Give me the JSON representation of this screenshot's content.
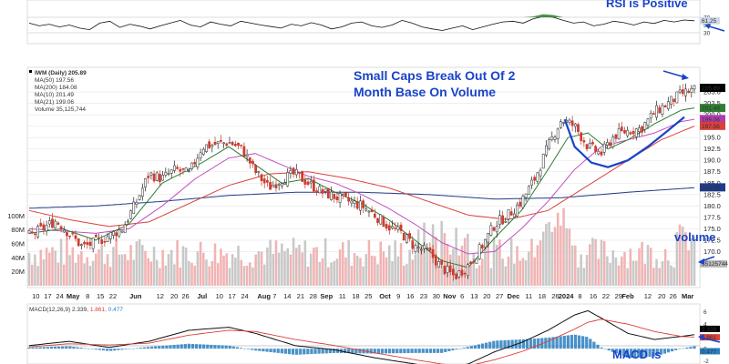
{
  "annotations": {
    "rsi": "RSI is Positive",
    "headline_line1": "Small Caps Break Out Of 2",
    "headline_line2": "Month Base On Volume",
    "volume": "volume",
    "macd": "MACD is"
  },
  "chart_data": {
    "type": "candlestick",
    "symbol": "IWM",
    "legend": {
      "title": "IWM (Daily) 205.89",
      "ma50": "MA(50) 197.56",
      "ma200": "MA(200) 184.08",
      "ma10": "MA(10) 201.49",
      "ma21": "MA(21) 199.06",
      "volume": "Volume 35,125,744"
    },
    "price_axis": {
      "min": 162.5,
      "max": 210,
      "ticks": [
        "167.5",
        "170.0",
        "172.5",
        "175.0",
        "177.5",
        "180.0",
        "182.5",
        "185.0",
        "187.5",
        "190.0",
        "192.5",
        "195.0",
        "197.5",
        "200.0",
        "202.5",
        "205.0"
      ]
    },
    "price_badges": [
      {
        "label": "205.89",
        "value": 205.89,
        "color": "#000000",
        "text_color": "#ffffff"
      },
      {
        "label": "201.49",
        "value": 201.49,
        "color": "#2e7d32",
        "text_color": "#ffffff"
      },
      {
        "label": "199.06",
        "value": 199.06,
        "color": "#b03cb0",
        "text_color": "#ffffff"
      },
      {
        "label": "197.56",
        "value": 197.56,
        "color": "#d9413b",
        "text_color": "#ffffff"
      },
      {
        "label": "184.08",
        "value": 184.08,
        "color": "#1f3a8a",
        "text_color": "#ffffff"
      }
    ],
    "volume_axis": {
      "ticks": [
        "20M",
        "40M",
        "60M",
        "80M",
        "100M"
      ],
      "max_m": 120,
      "last_label": "35125744"
    },
    "x_axis_labels": [
      {
        "label": "10",
        "pos": 0.01
      },
      {
        "label": "17",
        "pos": 0.028
      },
      {
        "label": "24",
        "pos": 0.046
      },
      {
        "label": "May",
        "pos": 0.066,
        "bold": true
      },
      {
        "label": "8",
        "pos": 0.088
      },
      {
        "label": "15",
        "pos": 0.107
      },
      {
        "label": "22",
        "pos": 0.126
      },
      {
        "label": "Jun",
        "pos": 0.16,
        "bold": true
      },
      {
        "label": "12",
        "pos": 0.197
      },
      {
        "label": "20",
        "pos": 0.218
      },
      {
        "label": "26",
        "pos": 0.235
      },
      {
        "label": "Jul",
        "pos": 0.26,
        "bold": true
      },
      {
        "label": "10",
        "pos": 0.286
      },
      {
        "label": "17",
        "pos": 0.305
      },
      {
        "label": "24",
        "pos": 0.324
      },
      {
        "label": "Aug",
        "pos": 0.353,
        "bold": true
      },
      {
        "label": "7",
        "pos": 0.369
      },
      {
        "label": "14",
        "pos": 0.388
      },
      {
        "label": "21",
        "pos": 0.408
      },
      {
        "label": "28",
        "pos": 0.427
      },
      {
        "label": "Sep",
        "pos": 0.447,
        "bold": true
      },
      {
        "label": "11",
        "pos": 0.471
      },
      {
        "label": "18",
        "pos": 0.491
      },
      {
        "label": "25",
        "pos": 0.51
      },
      {
        "label": "Oct",
        "pos": 0.535,
        "bold": true
      },
      {
        "label": "9",
        "pos": 0.555
      },
      {
        "label": "16",
        "pos": 0.573
      },
      {
        "label": "23",
        "pos": 0.593
      },
      {
        "label": "30",
        "pos": 0.612
      },
      {
        "label": "Nov",
        "pos": 0.632,
        "bold": true
      },
      {
        "label": "6",
        "pos": 0.651
      },
      {
        "label": "13",
        "pos": 0.669
      },
      {
        "label": "20",
        "pos": 0.688
      },
      {
        "label": "27",
        "pos": 0.707
      },
      {
        "label": "Dec",
        "pos": 0.728,
        "bold": true
      },
      {
        "label": "11",
        "pos": 0.751
      },
      {
        "label": "18",
        "pos": 0.771
      },
      {
        "label": "26",
        "pos": 0.791
      },
      {
        "label": "2024",
        "pos": 0.807,
        "bold": true
      },
      {
        "label": "8",
        "pos": 0.828
      },
      {
        "label": "16",
        "pos": 0.848
      },
      {
        "label": "22",
        "pos": 0.867
      },
      {
        "label": "29",
        "pos": 0.886
      },
      {
        "label": "Feb",
        "pos": 0.9,
        "bold": true
      },
      {
        "label": "12",
        "pos": 0.93
      },
      {
        "label": "20",
        "pos": 0.951
      },
      {
        "label": "26",
        "pos": 0.968
      },
      {
        "label": "Mar",
        "pos": 0.99,
        "bold": true
      }
    ],
    "close_path": [
      [
        0,
        173.5
      ],
      [
        0.02,
        175
      ],
      [
        0.04,
        176.8
      ],
      [
        0.06,
        174
      ],
      [
        0.08,
        171
      ],
      [
        0.1,
        172
      ],
      [
        0.12,
        173.5
      ],
      [
        0.14,
        175
      ],
      [
        0.16,
        180.5
      ],
      [
        0.18,
        187
      ],
      [
        0.2,
        186
      ],
      [
        0.22,
        188
      ],
      [
        0.24,
        187
      ],
      [
        0.26,
        193
      ],
      [
        0.28,
        193.5
      ],
      [
        0.3,
        194
      ],
      [
        0.32,
        192.5
      ],
      [
        0.34,
        187.5
      ],
      [
        0.36,
        184
      ],
      [
        0.38,
        186
      ],
      [
        0.4,
        187
      ],
      [
        0.42,
        185
      ],
      [
        0.44,
        183
      ],
      [
        0.46,
        182
      ],
      [
        0.48,
        181
      ],
      [
        0.5,
        180
      ],
      [
        0.52,
        178
      ],
      [
        0.54,
        175.5
      ],
      [
        0.56,
        174
      ],
      [
        0.58,
        171
      ],
      [
        0.6,
        170
      ],
      [
        0.62,
        166.5
      ],
      [
        0.64,
        164.5
      ],
      [
        0.66,
        167
      ],
      [
        0.68,
        171
      ],
      [
        0.7,
        176
      ],
      [
        0.72,
        178
      ],
      [
        0.74,
        181
      ],
      [
        0.76,
        186
      ],
      [
        0.78,
        193
      ],
      [
        0.8,
        199
      ],
      [
        0.82,
        197.5
      ],
      [
        0.84,
        193
      ],
      [
        0.86,
        191.5
      ],
      [
        0.88,
        195.5
      ],
      [
        0.9,
        196.5
      ],
      [
        0.92,
        197
      ],
      [
        0.94,
        200.5
      ],
      [
        0.96,
        202.5
      ],
      [
        0.98,
        204.5
      ],
      [
        1.0,
        205.5
      ]
    ],
    "ma10_path": [
      [
        0,
        174
      ],
      [
        0.05,
        175
      ],
      [
        0.1,
        172.5
      ],
      [
        0.15,
        176
      ],
      [
        0.2,
        185
      ],
      [
        0.26,
        189.5
      ],
      [
        0.3,
        193
      ],
      [
        0.34,
        189
      ],
      [
        0.38,
        185
      ],
      [
        0.42,
        186
      ],
      [
        0.46,
        183
      ],
      [
        0.5,
        180.5
      ],
      [
        0.54,
        177
      ],
      [
        0.58,
        172.5
      ],
      [
        0.62,
        168
      ],
      [
        0.66,
        166.5
      ],
      [
        0.7,
        173
      ],
      [
        0.74,
        179
      ],
      [
        0.78,
        188
      ],
      [
        0.81,
        195
      ],
      [
        0.84,
        196
      ],
      [
        0.87,
        192.5
      ],
      [
        0.9,
        194.5
      ],
      [
        0.94,
        198
      ],
      [
        0.98,
        201
      ],
      [
        1.0,
        201.5
      ]
    ],
    "ma21_path": [
      [
        0,
        175
      ],
      [
        0.05,
        174.5
      ],
      [
        0.1,
        174
      ],
      [
        0.15,
        175
      ],
      [
        0.2,
        180
      ],
      [
        0.25,
        186
      ],
      [
        0.3,
        190.5
      ],
      [
        0.34,
        191.5
      ],
      [
        0.38,
        189
      ],
      [
        0.42,
        186.5
      ],
      [
        0.46,
        185
      ],
      [
        0.5,
        182.5
      ],
      [
        0.54,
        179.5
      ],
      [
        0.58,
        176
      ],
      [
        0.62,
        172
      ],
      [
        0.66,
        169.5
      ],
      [
        0.7,
        170
      ],
      [
        0.74,
        175
      ],
      [
        0.78,
        181
      ],
      [
        0.82,
        188
      ],
      [
        0.86,
        193
      ],
      [
        0.9,
        194.5
      ],
      [
        0.94,
        196
      ],
      [
        0.98,
        198.5
      ],
      [
        1.0,
        199
      ]
    ],
    "ma50_path": [
      [
        0,
        179
      ],
      [
        0.06,
        177
      ],
      [
        0.12,
        175.5
      ],
      [
        0.18,
        176.5
      ],
      [
        0.24,
        180.5
      ],
      [
        0.3,
        184.5
      ],
      [
        0.36,
        187
      ],
      [
        0.42,
        187.5
      ],
      [
        0.48,
        186
      ],
      [
        0.54,
        184
      ],
      [
        0.6,
        181
      ],
      [
        0.66,
        178
      ],
      [
        0.72,
        177
      ],
      [
        0.78,
        179
      ],
      [
        0.84,
        184.5
      ],
      [
        0.9,
        190
      ],
      [
        0.95,
        194.5
      ],
      [
        1.0,
        197.5
      ]
    ],
    "ma200_path": [
      [
        0,
        179.5
      ],
      [
        0.1,
        180
      ],
      [
        0.2,
        181
      ],
      [
        0.3,
        182.3
      ],
      [
        0.4,
        183
      ],
      [
        0.5,
        183
      ],
      [
        0.6,
        182.5
      ],
      [
        0.7,
        181.5
      ],
      [
        0.8,
        181.8
      ],
      [
        0.9,
        183
      ],
      [
        1.0,
        184
      ]
    ],
    "cup": [
      [
        0.805,
        199
      ],
      [
        0.82,
        193
      ],
      [
        0.845,
        189.5
      ],
      [
        0.87,
        188.5
      ],
      [
        0.9,
        190
      ],
      [
        0.93,
        193
      ],
      [
        0.96,
        196.5
      ],
      [
        0.985,
        199.5
      ]
    ],
    "rsi": {
      "ticks": [
        "70",
        "50",
        "30"
      ],
      "badge_label": "61.25",
      "badge_value": 61.25,
      "series": [
        55,
        48,
        52,
        45,
        50,
        42,
        38,
        55,
        60,
        44,
        52,
        47,
        40,
        48,
        55,
        62,
        50,
        45,
        58,
        52,
        48,
        60,
        55,
        50,
        46,
        42,
        52,
        48,
        56,
        50,
        40,
        45,
        55,
        58,
        48,
        44,
        50,
        62,
        55,
        45,
        40,
        36,
        42,
        48,
        38,
        45,
        52,
        58,
        60,
        55,
        66,
        72,
        70,
        62,
        55,
        58,
        48,
        52,
        60,
        56,
        50,
        58,
        54,
        62,
        58,
        63,
        61
      ]
    },
    "macd": {
      "legend_prefix": "MACD(12,26,9) 2.339, ",
      "signal_text": "1.861, ",
      "hist_text": "0.477",
      "ticks": [
        "6",
        "4",
        "2",
        "0",
        "-2"
      ],
      "badges": [
        {
          "label": "2.339",
          "value": 2.339,
          "color": "#000000"
        },
        {
          "label": "1.861",
          "value": 1.861,
          "color": "#d9413b"
        },
        {
          "label": "0.477",
          "value": 0.477,
          "color": "#2a7fc0"
        }
      ],
      "macd_path": [
        [
          0,
          0.5
        ],
        [
          0.06,
          1.2
        ],
        [
          0.12,
          0.2
        ],
        [
          0.18,
          1.2
        ],
        [
          0.24,
          3
        ],
        [
          0.3,
          3.5
        ],
        [
          0.34,
          2.5
        ],
        [
          0.4,
          0.5
        ],
        [
          0.46,
          -0.2
        ],
        [
          0.52,
          -1.5
        ],
        [
          0.58,
          -2.5
        ],
        [
          0.62,
          -3.2
        ],
        [
          0.66,
          -2.5
        ],
        [
          0.7,
          -0.5
        ],
        [
          0.74,
          1
        ],
        [
          0.78,
          3
        ],
        [
          0.82,
          5.5
        ],
        [
          0.84,
          6.2
        ],
        [
          0.86,
          5
        ],
        [
          0.9,
          2.5
        ],
        [
          0.94,
          1.5
        ],
        [
          0.98,
          2
        ],
        [
          1.0,
          2.3
        ]
      ],
      "signal_path": [
        [
          0,
          0.3
        ],
        [
          0.06,
          0.8
        ],
        [
          0.12,
          0.6
        ],
        [
          0.18,
          0.9
        ],
        [
          0.24,
          2.2
        ],
        [
          0.3,
          3
        ],
        [
          0.34,
          2.8
        ],
        [
          0.4,
          1.5
        ],
        [
          0.46,
          0.5
        ],
        [
          0.52,
          -0.7
        ],
        [
          0.58,
          -1.8
        ],
        [
          0.62,
          -2.5
        ],
        [
          0.66,
          -2.8
        ],
        [
          0.7,
          -1.8
        ],
        [
          0.74,
          -0.5
        ],
        [
          0.78,
          1.2
        ],
        [
          0.82,
          3.2
        ],
        [
          0.84,
          4.3
        ],
        [
          0.86,
          4.8
        ],
        [
          0.9,
          4
        ],
        [
          0.94,
          2.8
        ],
        [
          0.98,
          2
        ],
        [
          1.0,
          1.9
        ]
      ],
      "min": -2.5,
      "max": 7
    }
  }
}
